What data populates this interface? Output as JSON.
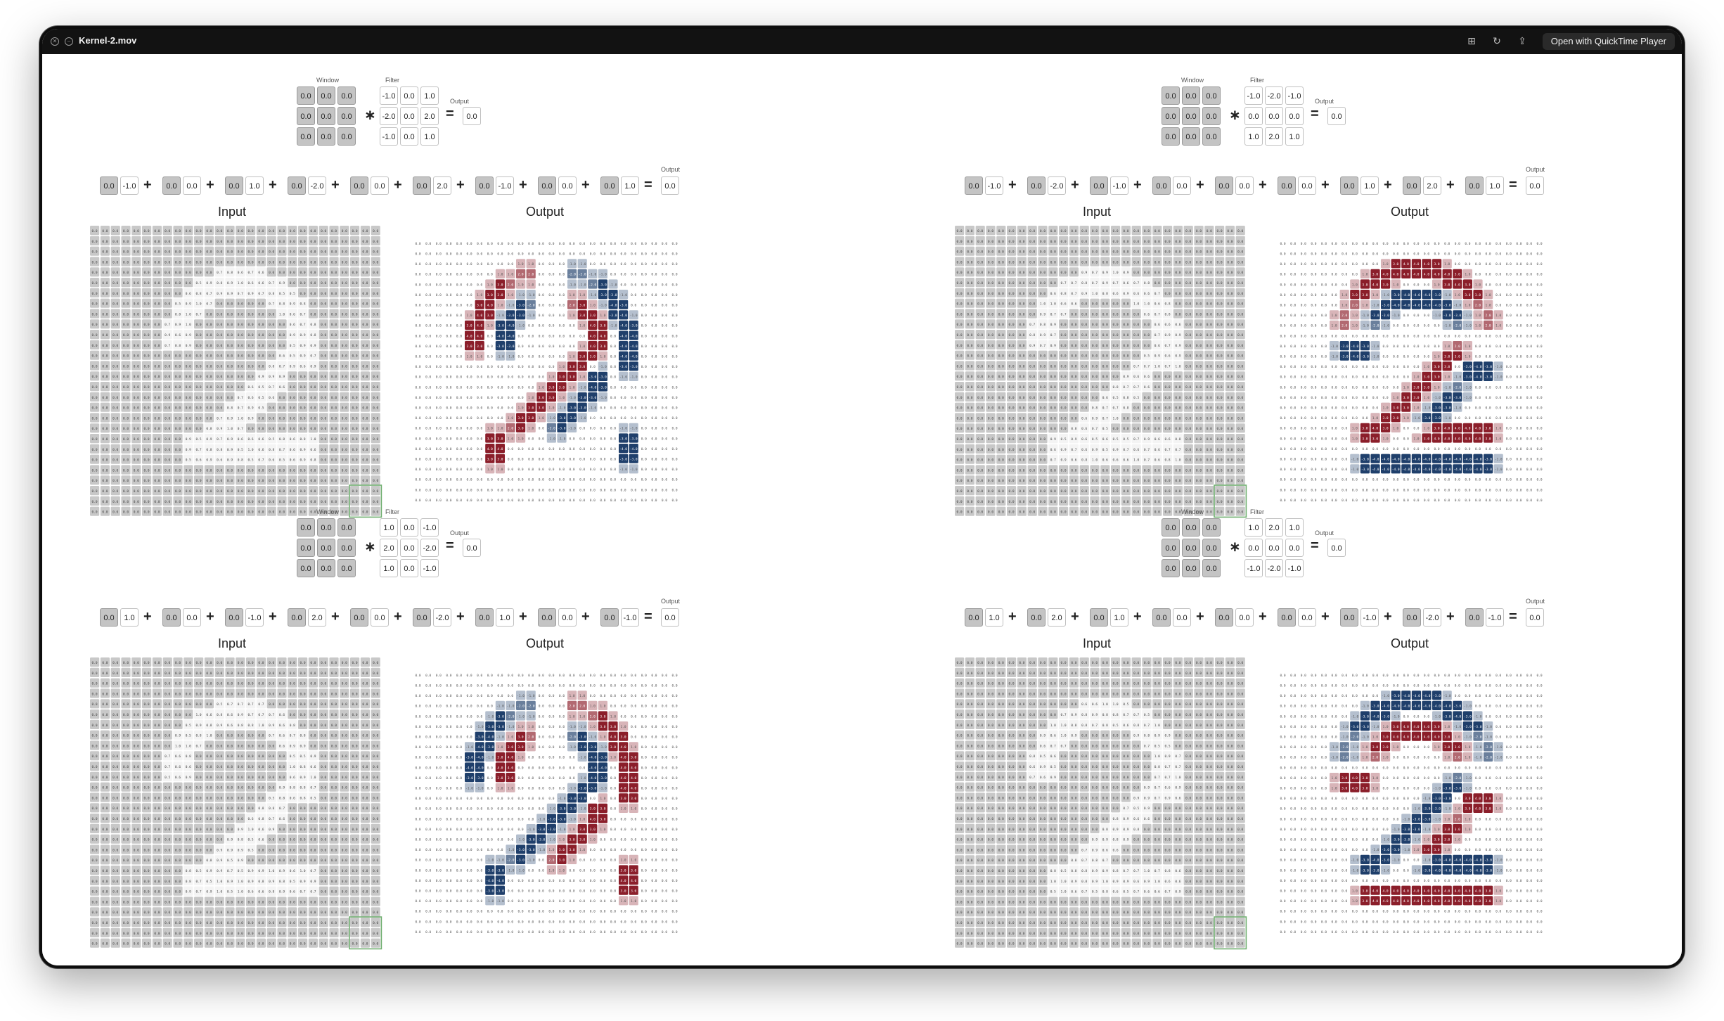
{
  "window": {
    "title": "Kernel-2.mov",
    "open_button": "Open with QuickTime Player"
  },
  "labels": {
    "window": "Window",
    "filter": "Filter",
    "output_small": "Output",
    "input": "Input",
    "output": "Output"
  },
  "panels": [
    {
      "id": "top-left",
      "window_values": [
        [
          "0.0",
          "0.0",
          "0.0"
        ],
        [
          "0.0",
          "0.0",
          "0.0"
        ],
        [
          "0.0",
          "0.0",
          "0.0"
        ]
      ],
      "filter_values": [
        [
          "-1.0",
          "0.0",
          "1.0"
        ],
        [
          "-2.0",
          "0.0",
          "2.0"
        ],
        [
          "-1.0",
          "0.0",
          "1.0"
        ]
      ],
      "output_value": "0.0",
      "sum_terms": [
        [
          "0.0",
          "-1.0"
        ],
        [
          "0.0",
          "0.0"
        ],
        [
          "0.0",
          "1.0"
        ],
        [
          "0.0",
          "-2.0"
        ],
        [
          "0.0",
          "0.0"
        ],
        [
          "0.0",
          "2.0"
        ],
        [
          "0.0",
          "-1.0"
        ],
        [
          "0.0",
          "0.0"
        ],
        [
          "0.0",
          "1.0"
        ]
      ],
      "sum_result": "0.0"
    },
    {
      "id": "top-right",
      "window_values": [
        [
          "0.0",
          "0.0",
          "0.0"
        ],
        [
          "0.0",
          "0.0",
          "0.0"
        ],
        [
          "0.0",
          "0.0",
          "0.0"
        ]
      ],
      "filter_values": [
        [
          "-1.0",
          "-2.0",
          "-1.0"
        ],
        [
          "0.0",
          "0.0",
          "0.0"
        ],
        [
          "1.0",
          "2.0",
          "1.0"
        ]
      ],
      "output_value": "0.0",
      "sum_terms": [
        [
          "0.0",
          "-1.0"
        ],
        [
          "0.0",
          "-2.0"
        ],
        [
          "0.0",
          "-1.0"
        ],
        [
          "0.0",
          "0.0"
        ],
        [
          "0.0",
          "0.0"
        ],
        [
          "0.0",
          "0.0"
        ],
        [
          "0.0",
          "1.0"
        ],
        [
          "0.0",
          "2.0"
        ],
        [
          "0.0",
          "1.0"
        ]
      ],
      "sum_result": "0.0"
    },
    {
      "id": "bottom-left",
      "window_values": [
        [
          "0.0",
          "0.0",
          "0.0"
        ],
        [
          "0.0",
          "0.0",
          "0.0"
        ],
        [
          "0.0",
          "0.0",
          "0.0"
        ]
      ],
      "filter_values": [
        [
          "1.0",
          "0.0",
          "-1.0"
        ],
        [
          "2.0",
          "0.0",
          "-2.0"
        ],
        [
          "1.0",
          "0.0",
          "-1.0"
        ]
      ],
      "output_value": "0.0",
      "sum_terms": [
        [
          "0.0",
          "1.0"
        ],
        [
          "0.0",
          "0.0"
        ],
        [
          "0.0",
          "-1.0"
        ],
        [
          "0.0",
          "2.0"
        ],
        [
          "0.0",
          "0.0"
        ],
        [
          "0.0",
          "-2.0"
        ],
        [
          "0.0",
          "1.0"
        ],
        [
          "0.0",
          "0.0"
        ],
        [
          "0.0",
          "-1.0"
        ]
      ],
      "sum_result": "0.0"
    },
    {
      "id": "bottom-right",
      "window_values": [
        [
          "0.0",
          "0.0",
          "0.0"
        ],
        [
          "0.0",
          "0.0",
          "0.0"
        ],
        [
          "0.0",
          "0.0",
          "0.0"
        ]
      ],
      "filter_values": [
        [
          "1.0",
          "2.0",
          "1.0"
        ],
        [
          "0.0",
          "0.0",
          "0.0"
        ],
        [
          "-1.0",
          "-2.0",
          "-1.0"
        ]
      ],
      "output_value": "0.0",
      "sum_terms": [
        [
          "0.0",
          "1.0"
        ],
        [
          "0.0",
          "2.0"
        ],
        [
          "0.0",
          "1.0"
        ],
        [
          "0.0",
          "0.0"
        ],
        [
          "0.0",
          "0.0"
        ],
        [
          "0.0",
          "0.0"
        ],
        [
          "0.0",
          "-1.0"
        ],
        [
          "0.0",
          "-2.0"
        ],
        [
          "0.0",
          "-1.0"
        ]
      ],
      "sum_result": "0.0"
    }
  ],
  "colors": {
    "input_cell": "#c4c4c4",
    "positive": "#8b1e2a",
    "negative": "#1f3f6b",
    "window_highlight": "#6fae6f"
  },
  "icons": [
    "close-icon",
    "minimize-icon",
    "trim-icon",
    "rotate-icon",
    "share-icon"
  ]
}
